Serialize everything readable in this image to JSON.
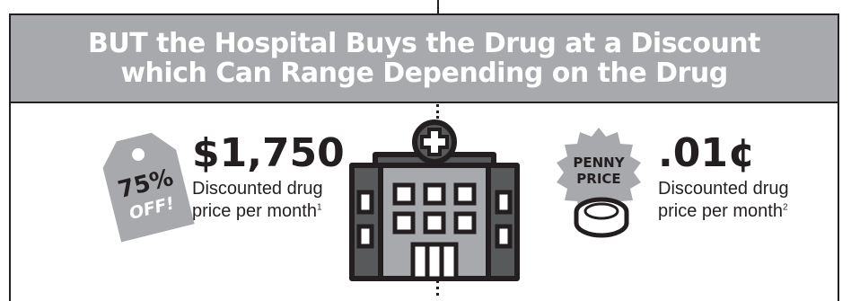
{
  "banner": {
    "line1": "BUT the Hospital Buys the Drug at a Discount",
    "line2": "which Can Range Depending on the Drug"
  },
  "left": {
    "tag": {
      "line1": "75%",
      "line2": "OFF!"
    },
    "price": "$1,750",
    "caption_line1": "Discounted drug",
    "caption_line2": "price per month",
    "footnote": "1"
  },
  "right": {
    "badge": {
      "line1": "PENNY",
      "line2": "PRICE"
    },
    "price": ".01¢",
    "caption_line1": "Discounted drug",
    "caption_line2": "price per month",
    "footnote": "2"
  },
  "colors": {
    "banner": "#a7a9ac",
    "dark": "#231f20",
    "gray_tag": "#a7a9ac",
    "building_dark": "#58595b",
    "building_light": "#a7a9ac"
  },
  "icons": {
    "tag": "discount-tag-icon",
    "hospital": "hospital-building-icon",
    "badge": "penny-price-badge-icon",
    "coin": "coin-icon"
  }
}
